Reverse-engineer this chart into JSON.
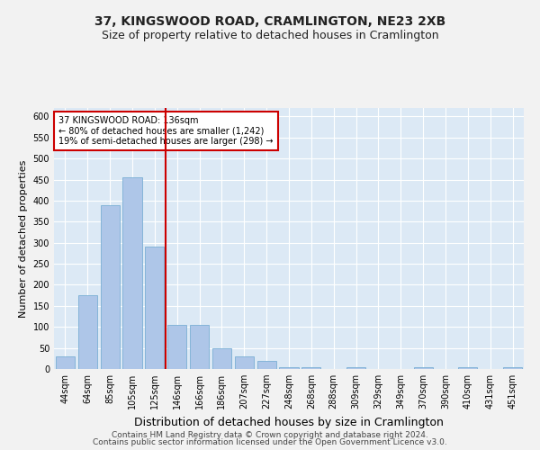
{
  "title1": "37, KINGSWOOD ROAD, CRAMLINGTON, NE23 2XB",
  "title2": "Size of property relative to detached houses in Cramlington",
  "xlabel": "Distribution of detached houses by size in Cramlington",
  "ylabel": "Number of detached properties",
  "footer1": "Contains HM Land Registry data © Crown copyright and database right 2024.",
  "footer2": "Contains public sector information licensed under the Open Government Licence v3.0.",
  "categories": [
    "44sqm",
    "64sqm",
    "85sqm",
    "105sqm",
    "125sqm",
    "146sqm",
    "166sqm",
    "186sqm",
    "207sqm",
    "227sqm",
    "248sqm",
    "268sqm",
    "288sqm",
    "309sqm",
    "329sqm",
    "349sqm",
    "370sqm",
    "390sqm",
    "410sqm",
    "431sqm",
    "451sqm"
  ],
  "values": [
    30,
    175,
    390,
    455,
    290,
    105,
    105,
    50,
    30,
    20,
    5,
    5,
    0,
    5,
    0,
    0,
    5,
    0,
    5,
    0,
    5
  ],
  "bar_color": "#aec6e8",
  "bar_edge_color": "#7aafd4",
  "vline_x": 4.5,
  "vline_color": "#cc0000",
  "annotation_title": "37 KINGSWOOD ROAD: 136sqm",
  "annotation_line1": "← 80% of detached houses are smaller (1,242)",
  "annotation_line2": "19% of semi-detached houses are larger (298) →",
  "annotation_box_color": "#cc0000",
  "ylim": [
    0,
    620
  ],
  "yticks": [
    0,
    50,
    100,
    150,
    200,
    250,
    300,
    350,
    400,
    450,
    500,
    550,
    600
  ],
  "background_color": "#dce9f5",
  "fig_background": "#f2f2f2",
  "grid_color": "#ffffff",
  "title1_fontsize": 10,
  "title2_fontsize": 9,
  "xlabel_fontsize": 9,
  "ylabel_fontsize": 8,
  "tick_fontsize": 7,
  "footer_fontsize": 6.5
}
